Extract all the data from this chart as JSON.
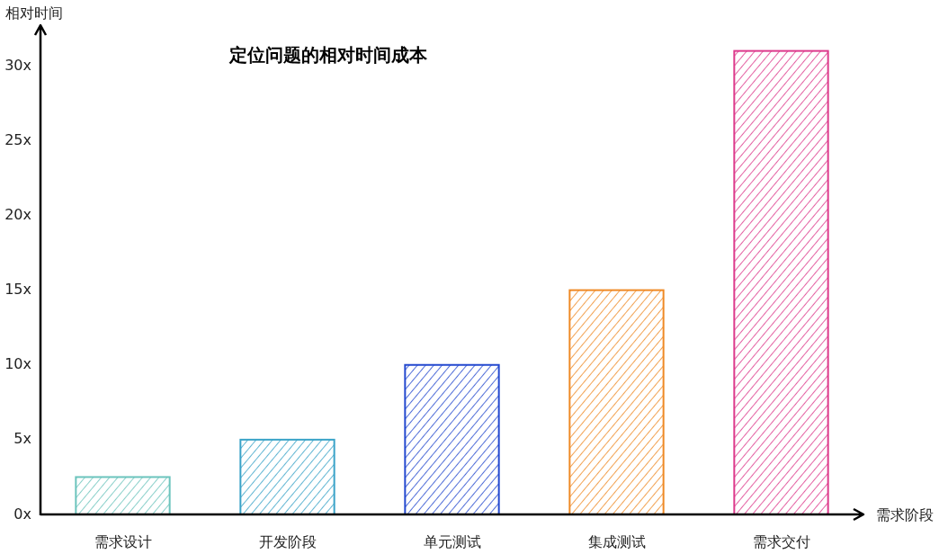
{
  "chart_data": {
    "type": "bar",
    "title": "定位问题的相对时间成本",
    "xlabel": "需求阶段",
    "ylabel": "相对时间",
    "categories": [
      "需求设计",
      "开发阶段",
      "单元测试",
      "集成测试",
      "需求交付"
    ],
    "values": [
      2.5,
      5,
      10,
      15,
      31
    ],
    "colors": [
      "#6cc4bd",
      "#3aa3c8",
      "#2449cf",
      "#ef8a26",
      "#dd3a8c"
    ],
    "ylim": [
      0,
      32
    ],
    "yticks": [
      {
        "value": 0,
        "label": "0x"
      },
      {
        "value": 5,
        "label": "5x"
      },
      {
        "value": 10,
        "label": "10x"
      },
      {
        "value": 15,
        "label": "15x"
      },
      {
        "value": 20,
        "label": "20x"
      },
      {
        "value": 25,
        "label": "25x"
      },
      {
        "value": 30,
        "label": "30x"
      }
    ],
    "grid": false
  }
}
